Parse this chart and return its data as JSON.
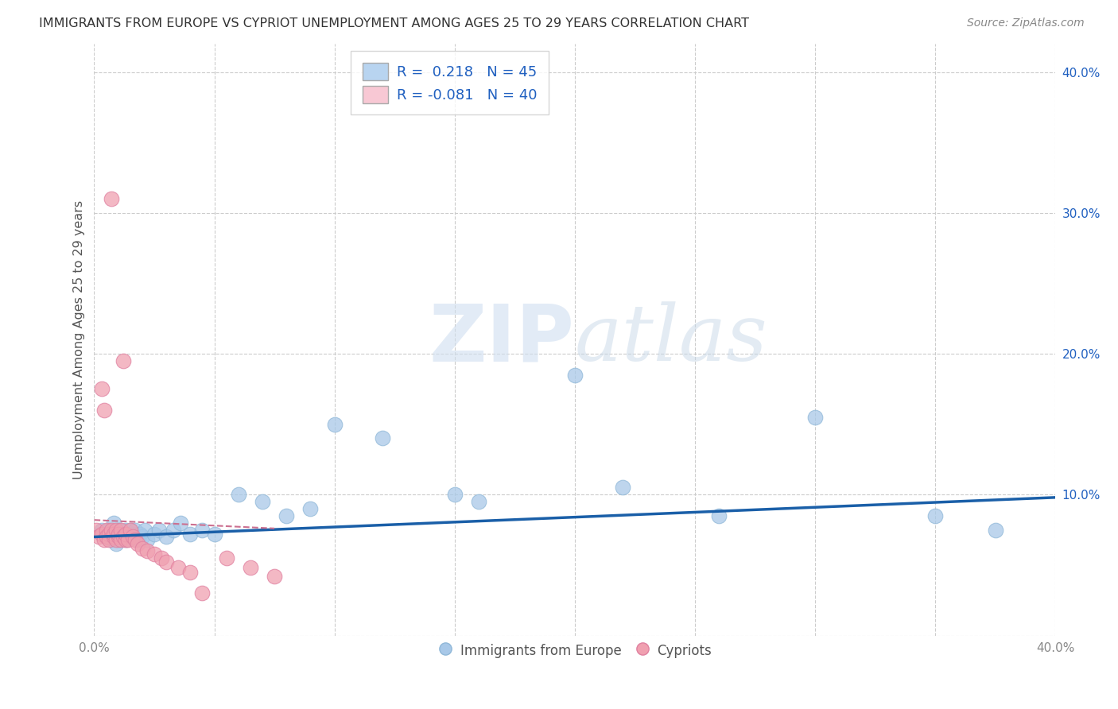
{
  "title": "IMMIGRANTS FROM EUROPE VS CYPRIOT UNEMPLOYMENT AMONG AGES 25 TO 29 YEARS CORRELATION CHART",
  "source": "Source: ZipAtlas.com",
  "ylabel": "Unemployment Among Ages 25 to 29 years",
  "xlim": [
    0.0,
    0.4
  ],
  "ylim": [
    0.0,
    0.42
  ],
  "yticks": [
    0.0,
    0.1,
    0.2,
    0.3,
    0.4
  ],
  "ytick_labels": [
    "",
    "10.0%",
    "20.0%",
    "30.0%",
    "40.0%"
  ],
  "xticks": [
    0.0,
    0.05,
    0.1,
    0.15,
    0.2,
    0.25,
    0.3,
    0.35,
    0.4
  ],
  "xtick_labels": [
    "0.0%",
    "",
    "",
    "",
    "",
    "",
    "",
    "",
    "40.0%"
  ],
  "legend_r1": "0.218",
  "legend_n1": "45",
  "legend_r2": "-0.081",
  "legend_n2": "40",
  "blue_scatter_x": [
    0.003,
    0.005,
    0.006,
    0.007,
    0.008,
    0.008,
    0.009,
    0.01,
    0.01,
    0.011,
    0.012,
    0.013,
    0.013,
    0.014,
    0.015,
    0.015,
    0.016,
    0.017,
    0.018,
    0.019,
    0.02,
    0.021,
    0.022,
    0.025,
    0.027,
    0.03,
    0.033,
    0.036,
    0.04,
    0.045,
    0.05,
    0.06,
    0.07,
    0.08,
    0.09,
    0.1,
    0.12,
    0.15,
    0.16,
    0.2,
    0.22,
    0.26,
    0.3,
    0.35,
    0.375
  ],
  "blue_scatter_y": [
    0.075,
    0.07,
    0.075,
    0.068,
    0.072,
    0.08,
    0.065,
    0.075,
    0.068,
    0.072,
    0.07,
    0.075,
    0.068,
    0.072,
    0.075,
    0.07,
    0.072,
    0.075,
    0.068,
    0.072,
    0.07,
    0.075,
    0.068,
    0.072,
    0.075,
    0.07,
    0.075,
    0.08,
    0.072,
    0.075,
    0.072,
    0.1,
    0.095,
    0.085,
    0.09,
    0.15,
    0.14,
    0.1,
    0.095,
    0.185,
    0.105,
    0.085,
    0.155,
    0.085,
    0.075
  ],
  "pink_scatter_x": [
    0.001,
    0.002,
    0.003,
    0.003,
    0.004,
    0.004,
    0.005,
    0.005,
    0.006,
    0.006,
    0.007,
    0.007,
    0.008,
    0.008,
    0.009,
    0.009,
    0.01,
    0.01,
    0.011,
    0.011,
    0.012,
    0.012,
    0.013,
    0.013,
    0.014,
    0.015,
    0.016,
    0.017,
    0.018,
    0.02,
    0.022,
    0.025,
    0.028,
    0.03,
    0.035,
    0.04,
    0.045,
    0.055,
    0.065,
    0.075
  ],
  "pink_scatter_y": [
    0.075,
    0.07,
    0.072,
    0.175,
    0.068,
    0.16,
    0.075,
    0.07,
    0.072,
    0.068,
    0.075,
    0.31,
    0.07,
    0.072,
    0.068,
    0.075,
    0.07,
    0.072,
    0.068,
    0.075,
    0.07,
    0.195,
    0.068,
    0.072,
    0.068,
    0.075,
    0.07,
    0.068,
    0.065,
    0.062,
    0.06,
    0.058,
    0.055,
    0.052,
    0.048,
    0.045,
    0.03,
    0.055,
    0.048,
    0.042
  ],
  "blue_line_x": [
    0.0,
    0.4
  ],
  "blue_line_y": [
    0.07,
    0.098
  ],
  "pink_line_x": [
    0.0,
    0.075
  ],
  "pink_line_y": [
    0.082,
    0.076
  ],
  "watermark_zip": "ZIP",
  "watermark_atlas": "atlas",
  "background_color": "#ffffff",
  "grid_color": "#cccccc",
  "dot_size": 180,
  "title_color": "#333333",
  "axis_label_color": "#555555",
  "tick_color": "#888888",
  "line_blue_color": "#1a5fa8",
  "line_pink_color": "#cc7090",
  "scatter_blue_fill": "#a8c8e8",
  "scatter_pink_fill": "#f0a0b0",
  "scatter_blue_edge": "#90b8d8",
  "scatter_pink_edge": "#e080a0",
  "legend_blue_fill": "#b8d4f0",
  "legend_pink_fill": "#f8c8d4",
  "ytick_color": "#2060c0",
  "xtick_label_color": "#888888"
}
